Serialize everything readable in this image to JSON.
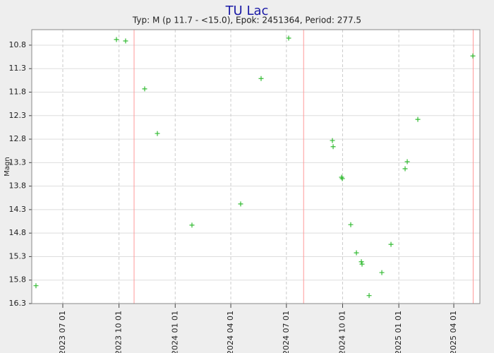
{
  "chart_data": {
    "type": "scatter",
    "title": "TU Lac",
    "subtitle": "Typ: M (p 11.7 - <15.0), Epok: 2451364, Period: 277.5",
    "y_label": "Magn",
    "y_inverted": true,
    "grid": true,
    "xlim": [
      2460075.7,
      2460809.2
    ],
    "ylim": [
      10.47,
      16.3
    ],
    "yticks": [
      10.8,
      11.3,
      11.8,
      12.3,
      12.8,
      13.3,
      13.8,
      14.3,
      14.8,
      15.3,
      15.8,
      16.3
    ],
    "xticks": [
      {
        "value": 2460126.5,
        "label": "2023 07 01"
      },
      {
        "value": 2460218.5,
        "label": "2023 10 01"
      },
      {
        "value": 2460310.5,
        "label": "2024 01 01"
      },
      {
        "value": 2460401.5,
        "label": "2024 04 01"
      },
      {
        "value": 2460492.5,
        "label": "2024 07 01"
      },
      {
        "value": 2460584.5,
        "label": "2024 10 01"
      },
      {
        "value": 2460676.5,
        "label": "2025 01 01"
      },
      {
        "value": 2460766.5,
        "label": "2025 04 01"
      }
    ],
    "maxima": [
      2460243.2,
      2460520.7,
      2460798.2
    ],
    "maxima_color": "#ff9999",
    "series": [
      {
        "color": "#33bb33",
        "x": [
          2460082.6,
          2460214.3,
          2460229.3,
          2460260.5,
          2460281.3,
          2460337.9,
          2460417.6,
          2460451.1,
          2460496.2,
          2460567.8,
          2460569.0,
          2460582.8,
          2460584.0,
          2460597.8,
          2460607.1,
          2460615.2,
          2460616.3,
          2460627.9,
          2460648.7,
          2460663.7,
          2460686.8,
          2460690.3,
          2460707.6,
          2460797.7
        ],
        "values": [
          15.92,
          10.68,
          10.71,
          11.73,
          12.68,
          14.63,
          14.18,
          11.51,
          10.65,
          12.83,
          12.96,
          13.61,
          13.64,
          14.62,
          15.22,
          15.41,
          15.46,
          16.13,
          15.64,
          15.04,
          13.43,
          13.28,
          12.38,
          11.03
        ]
      }
    ]
  }
}
